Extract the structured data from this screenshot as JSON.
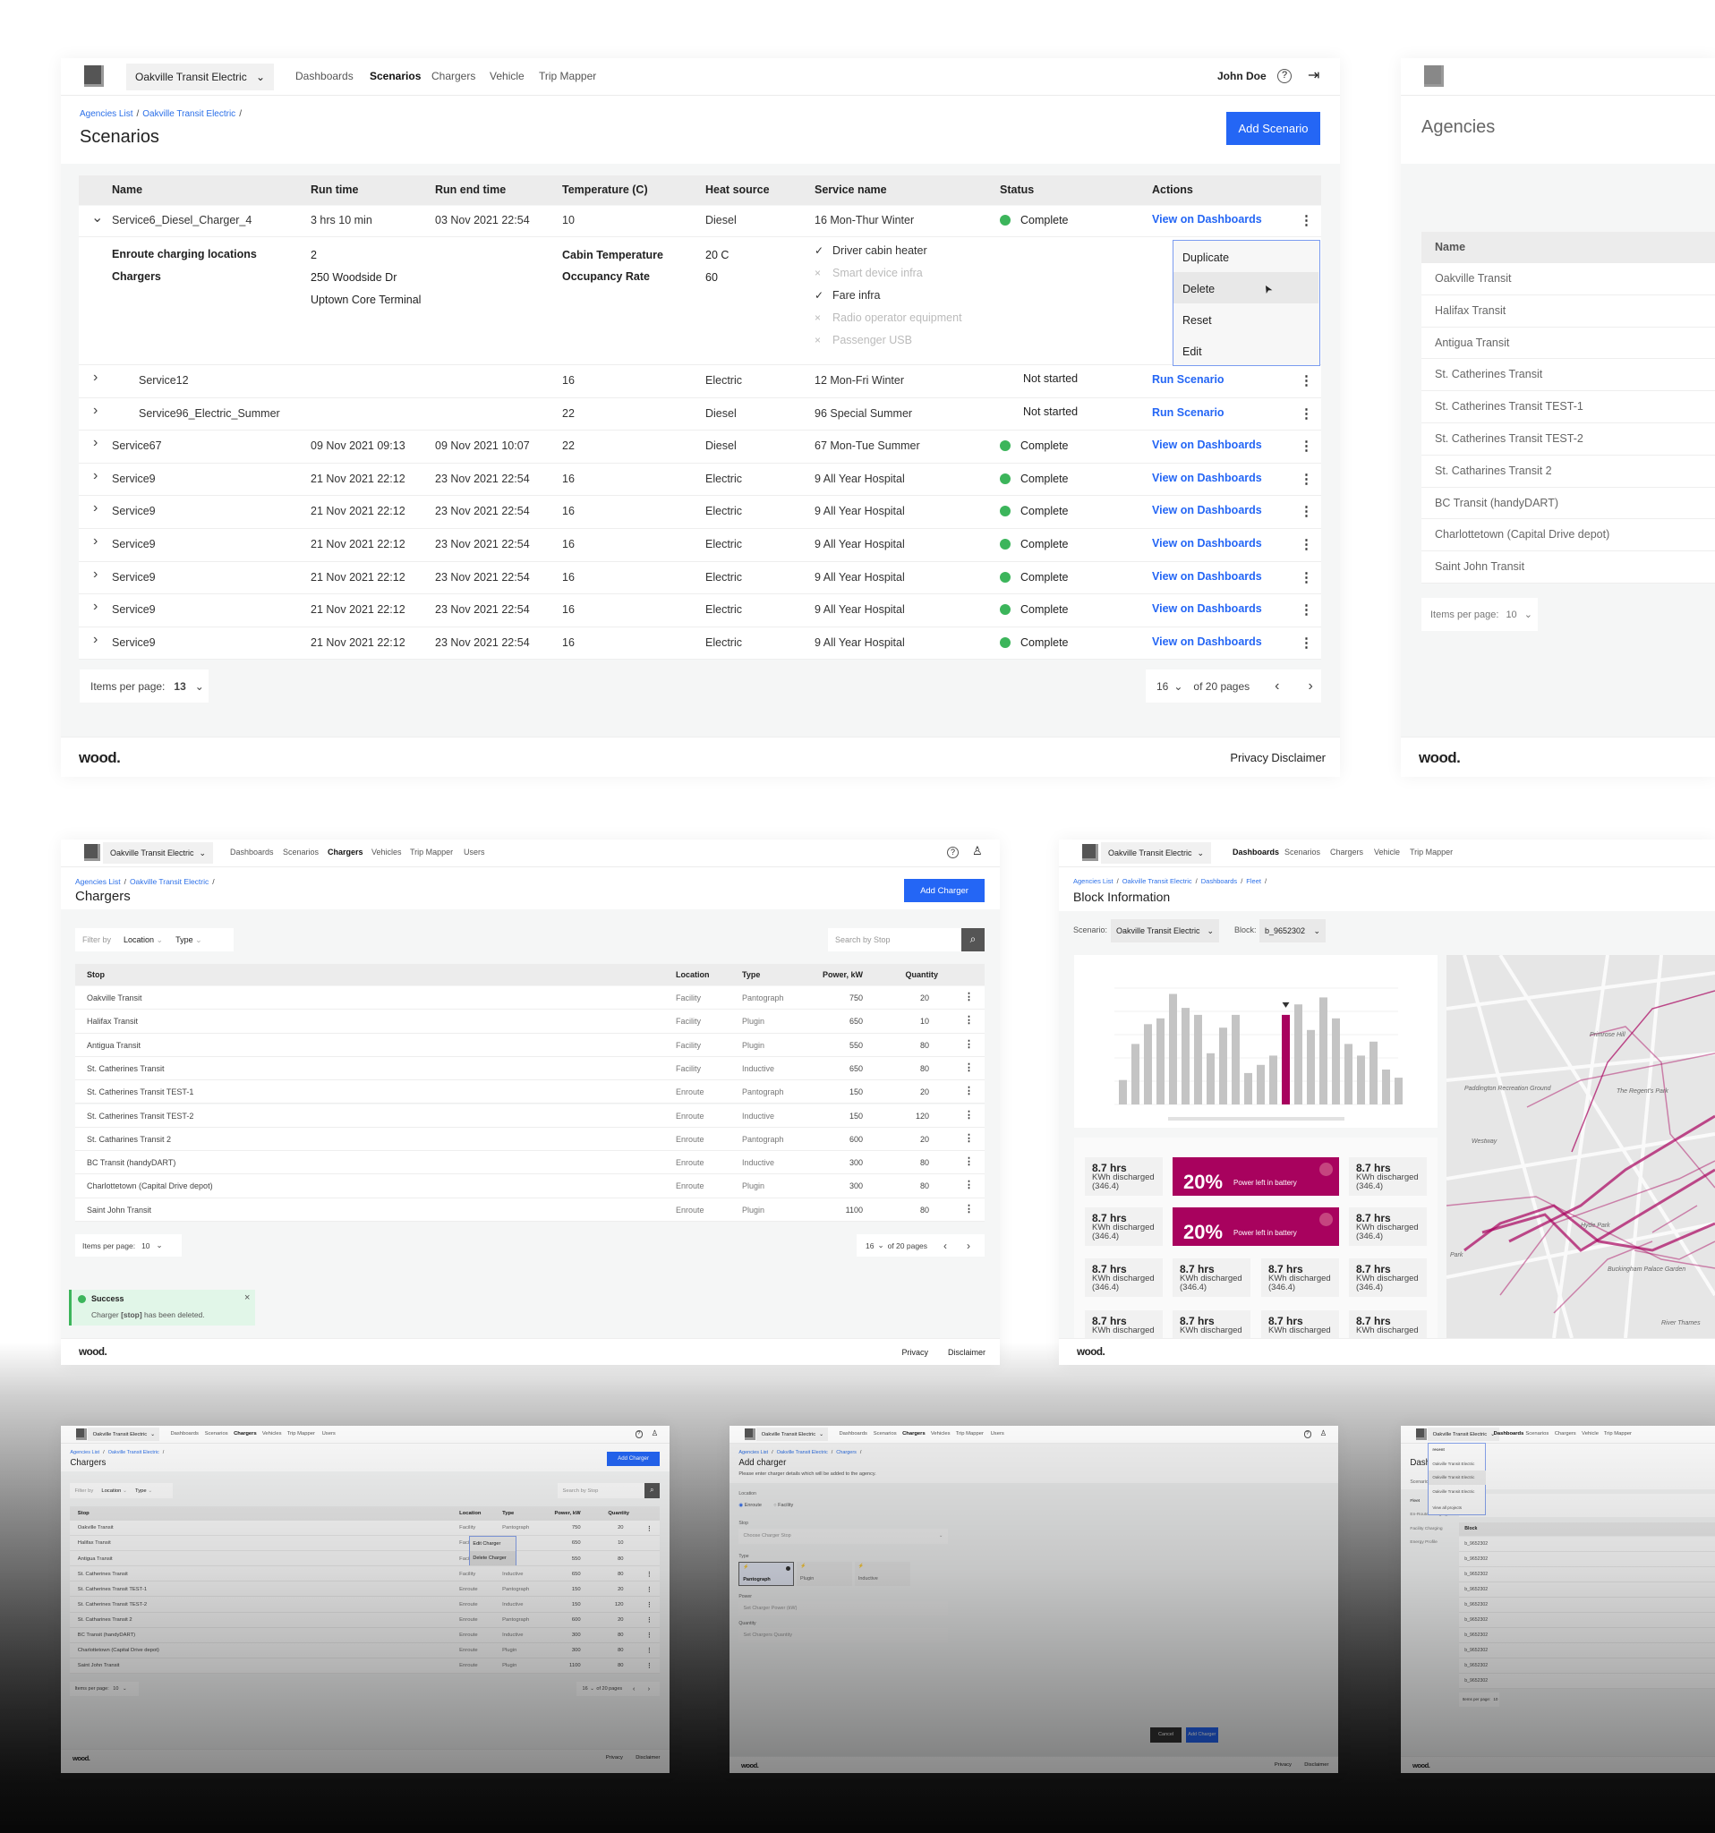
{
  "colors": {
    "accent": "#2466f5",
    "highlight_bar": "#a8025e",
    "complete": "#3cb55b",
    "success_bg": "#e1f6e8"
  },
  "footer": {
    "logo": "wood.",
    "privacy": "Privacy",
    "disclaimer": "Disclaimer"
  },
  "scenarios_page": {
    "agency_selector": "Oakville Transit Electric",
    "nav": [
      "Dashboards",
      "Scenarios",
      "Chargers",
      "Vehicle",
      "Trip Mapper"
    ],
    "active_nav": "Scenarios",
    "user": "John Doe",
    "breadcrumb": [
      "Agencies List",
      "Oakville Transit Electric"
    ],
    "title": "Scenarios",
    "add_button": "Add Scenario",
    "columns": [
      "Name",
      "Run time",
      "Run end time",
      "Temperature (C)",
      "Heat source",
      "Service name",
      "Status",
      "Actions"
    ],
    "rows": [
      {
        "name": "Service6_Diesel_Charger_4",
        "run_time": "3 hrs 10 min",
        "run_end": "03 Nov 2021 22:54",
        "temp": "10",
        "heat": "Diesel",
        "service": "16 Mon-Thur Winter",
        "status": "Complete",
        "action": "View on Dashboards",
        "expanded": true
      },
      {
        "name": "Service12",
        "run_time": "",
        "run_end": "",
        "temp": "16",
        "heat": "Electric",
        "service": "12 Mon-Fri Winter",
        "status": "Not started",
        "action": "Run Scenario"
      },
      {
        "name": "Service96_Electric_Summer",
        "run_time": "",
        "run_end": "",
        "temp": "22",
        "heat": "Diesel",
        "service": "96 Special Summer",
        "status": "Not started",
        "action": "Run Scenario"
      },
      {
        "name": "Service67",
        "run_time": "09 Nov 2021 09:13",
        "run_end": "09 Nov 2021 10:07",
        "temp": "22",
        "heat": "Diesel",
        "service": "67 Mon-Tue Summer",
        "status": "Complete",
        "action": "View on Dashboards"
      },
      {
        "name": "Service9",
        "run_time": "21 Nov 2021 22:12",
        "run_end": "23 Nov 2021 22:54",
        "temp": "16",
        "heat": "Electric",
        "service": "9 All Year Hospital",
        "status": "Complete",
        "action": "View on Dashboards"
      },
      {
        "name": "Service9",
        "run_time": "21 Nov 2021 22:12",
        "run_end": "23 Nov 2021 22:54",
        "temp": "16",
        "heat": "Electric",
        "service": "9 All Year Hospital",
        "status": "Complete",
        "action": "View on Dashboards"
      },
      {
        "name": "Service9",
        "run_time": "21 Nov 2021 22:12",
        "run_end": "23 Nov 2021 22:54",
        "temp": "16",
        "heat": "Electric",
        "service": "9 All Year Hospital",
        "status": "Complete",
        "action": "View on Dashboards"
      },
      {
        "name": "Service9",
        "run_time": "21 Nov 2021 22:12",
        "run_end": "23 Nov 2021 22:54",
        "temp": "16",
        "heat": "Electric",
        "service": "9 All Year Hospital",
        "status": "Complete",
        "action": "View on Dashboards"
      },
      {
        "name": "Service9",
        "run_time": "21 Nov 2021 22:12",
        "run_end": "23 Nov 2021 22:54",
        "temp": "16",
        "heat": "Electric",
        "service": "9 All Year Hospital",
        "status": "Complete",
        "action": "View on Dashboards"
      },
      {
        "name": "Service9",
        "run_time": "21 Nov 2021 22:12",
        "run_end": "23 Nov 2021 22:54",
        "temp": "16",
        "heat": "Electric",
        "service": "9 All Year Hospital",
        "status": "Complete",
        "action": "View on Dashboards"
      }
    ],
    "expanded": {
      "enroute_label": "Enroute charging locations",
      "enroute_value": "2",
      "chargers_label": "Chargers",
      "chargers": [
        "250 Woodside Dr",
        "Uptown Core Terminal"
      ],
      "cabin_temp_label": "Cabin Temperature",
      "cabin_temp": "20 C",
      "occupancy_label": "Occupancy Rate",
      "occupancy": "60",
      "features": [
        {
          "label": "Driver cabin heater",
          "enabled": true
        },
        {
          "label": "Smart device infra",
          "enabled": false
        },
        {
          "label": "Fare infra",
          "enabled": true
        },
        {
          "label": "Radio operator equipment",
          "enabled": false
        },
        {
          "label": "Passenger USB",
          "enabled": false
        }
      ]
    },
    "row_menu": [
      "Duplicate",
      "Delete",
      "Reset",
      "Edit"
    ],
    "menu_highlighted": "Delete",
    "items_per_page_label": "Items per page:",
    "items_per_page": "13",
    "page": "16",
    "page_total": "of 20 pages"
  },
  "agencies_page": {
    "title": "Agencies",
    "column": "Name",
    "rows": [
      "Oakville Transit",
      "Halifax Transit",
      "Antigua Transit",
      "St. Catherines Transit",
      "St. Catherines Transit TEST-1",
      "St. Catherines Transit TEST-2",
      "St. Catharines Transit 2",
      "BC Transit (handyDART)",
      "Charlottetown (Capital Drive depot)",
      "Saint John Transit"
    ],
    "items_per_page_label": "Items per page:",
    "items_per_page": "10"
  },
  "chargers_page": {
    "agency_selector": "Oakville Transit Electric",
    "nav": [
      "Dashboards",
      "Scenarios",
      "Chargers",
      "Vehicles",
      "Trip Mapper",
      "Users"
    ],
    "active_nav": "Chargers",
    "breadcrumb": [
      "Agencies List",
      "Oakville Transit Electric"
    ],
    "title": "Chargers",
    "add_button": "Add Charger",
    "filter_label": "Filter by",
    "filters": [
      "Location",
      "Type"
    ],
    "search_placeholder": "Search by Stop",
    "columns": [
      "Stop",
      "Location",
      "Type",
      "Power, kW",
      "Quantity"
    ],
    "rows": [
      {
        "stop": "Oakville Transit",
        "location": "Facility",
        "type": "Pantograph",
        "power": "750",
        "quantity": "20"
      },
      {
        "stop": "Halifax Transit",
        "location": "Facility",
        "type": "Plugin",
        "power": "650",
        "quantity": "10"
      },
      {
        "stop": "Antigua Transit",
        "location": "Facility",
        "type": "Plugin",
        "power": "550",
        "quantity": "80"
      },
      {
        "stop": "St. Catherines Transit",
        "location": "Facility",
        "type": "Inductive",
        "power": "650",
        "quantity": "80"
      },
      {
        "stop": "St. Catherines Transit TEST-1",
        "location": "Enroute",
        "type": "Pantograph",
        "power": "150",
        "quantity": "20"
      },
      {
        "stop": "St. Catherines Transit TEST-2",
        "location": "Enroute",
        "type": "Inductive",
        "power": "150",
        "quantity": "120"
      },
      {
        "stop": "St. Catharines Transit 2",
        "location": "Enroute",
        "type": "Pantograph",
        "power": "600",
        "quantity": "20"
      },
      {
        "stop": "BC Transit (handyDART)",
        "location": "Enroute",
        "type": "Inductive",
        "power": "300",
        "quantity": "80"
      },
      {
        "stop": "Charlottetown (Capital Drive depot)",
        "location": "Enroute",
        "type": "Plugin",
        "power": "300",
        "quantity": "80"
      },
      {
        "stop": "Saint John Transit",
        "location": "Enroute",
        "type": "Plugin",
        "power": "1100",
        "quantity": "80"
      }
    ],
    "items_per_page_label": "Items per page:",
    "items_per_page": "10",
    "page": "16",
    "page_total": "of 20 pages",
    "toast": {
      "title": "Success",
      "message_prefix": "Charger ",
      "message_bold": "[stop]",
      "message_suffix": " has been deleted."
    },
    "row_menu": [
      "Edit Charger",
      "Delete Charger"
    ]
  },
  "block_page": {
    "agency_selector": "Oakville Transit Electric",
    "nav": [
      "Dashboards",
      "Scenarios",
      "Chargers",
      "Vehicle",
      "Trip Mapper"
    ],
    "active_nav": "Dashboards",
    "breadcrumb": [
      "Agencies List",
      "Oakville Transit Electric",
      "Dashboards",
      "Fleet"
    ],
    "title": "Block Information",
    "scenario_label": "Scenario:",
    "scenario_value": "Oakville Transit Electric",
    "block_label": "Block:",
    "block_value": "b_9652302",
    "metric": {
      "value": "8.7 hrs",
      "label": "KWh discharged",
      "sub": "(346.4)"
    },
    "battery": {
      "value": "20%",
      "label": "Power left in battery"
    },
    "map_labels": [
      "Primrose Hill",
      "Paddington Recreation Ground",
      "The Regent's Park",
      "Westway",
      "Park",
      "Hyde Park",
      "Buckingham Palace Garden",
      "River Thames"
    ]
  },
  "chart_data": {
    "type": "bar",
    "values": [
      21,
      52,
      69,
      74,
      95,
      83,
      77,
      44,
      66,
      77,
      27,
      34,
      42,
      77,
      86,
      64,
      92,
      74,
      52,
      42,
      54,
      30,
      23
    ],
    "highlighted_index": 13,
    "title": "",
    "xlabel": "",
    "ylabel": "",
    "grid": true,
    "legend": "none"
  },
  "add_charger_page": {
    "breadcrumb": [
      "Agencies List",
      "Oakville Transit Electric",
      "Chargers"
    ],
    "title": "Add charger",
    "subtitle": "Please enter charger details which will be added to the agency.",
    "location_label": "Location",
    "location_options": [
      "Enroute",
      "Facility"
    ],
    "location_selected": "Enroute",
    "stop_label": "Stop",
    "stop_placeholder": "Choose Charger Stop",
    "type_label": "Type",
    "type_options": [
      "Pantograph",
      "Plugin",
      "Inductive"
    ],
    "type_selected": "Pantograph",
    "power_label": "Power",
    "power_placeholder": "Set Charger Power (kW)",
    "quantity_label": "Quantity",
    "quantity_placeholder": "Set Chargers Quantity",
    "cancel": "Cancel",
    "submit": "Add Charger"
  },
  "fleet_page": {
    "title": "Dashboards",
    "scenario_label": "Scenario",
    "dropdown_header": "recent",
    "dropdown_items": [
      "Oakville Transit Electric",
      "Oakville Transit Electric",
      "Oakville Transit Electric"
    ],
    "dropdown_footer": "View all projects",
    "sidebar": [
      "Fleet",
      "En-Route Charging",
      "Facility Charging",
      "Energy Profile"
    ],
    "section": "Fleet",
    "column": "Block",
    "blocks": [
      "b_9652302",
      "b_9652302",
      "b_9652302",
      "b_9652302",
      "b_9652302",
      "b_9652302",
      "b_9652302",
      "b_9652302",
      "b_9652302",
      "b_9652302"
    ],
    "items_per_page_label": "Items per page:",
    "items_per_page": "10"
  }
}
